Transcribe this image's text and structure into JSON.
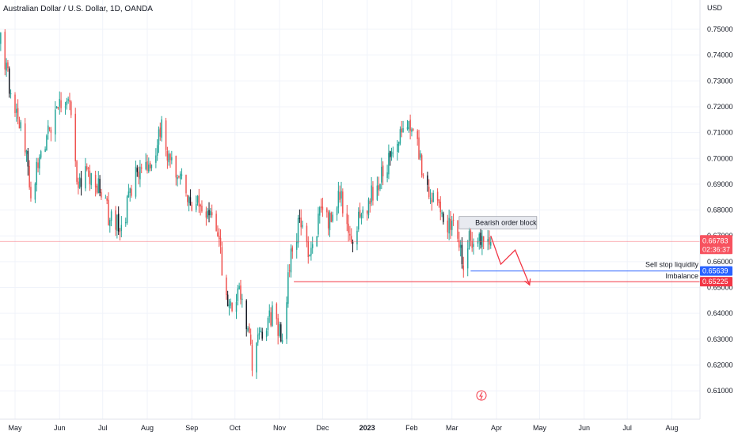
{
  "title": "Australian Dollar / U.S. Dollar, 1D, OANDA",
  "currency": "USD",
  "colors": {
    "up": "#26a69a",
    "down": "#ef5350",
    "candle_dark": "#131722",
    "price_line": "#f7525f",
    "liquidity_line": "#2962ff",
    "imbalance_line": "#f23645",
    "arrow": "#f23645",
    "zone_fill": "#e0e3eb",
    "zone_border": "#9598a1",
    "grid": "#f0f3fa"
  },
  "chart_data": {
    "type": "candlestick",
    "y_ticks": [
      "0.75000",
      "0.74000",
      "0.73000",
      "0.72000",
      "0.71000",
      "0.70000",
      "0.69000",
      "0.68000",
      "0.67000",
      "0.66000",
      "0.65000",
      "0.64000",
      "0.63000",
      "0.62000",
      "0.61000"
    ],
    "ylim": [
      0.6055,
      0.7595
    ],
    "x_ticks": [
      {
        "label": "May",
        "date": "2022-05-01",
        "bold": false
      },
      {
        "label": "Jun",
        "date": "2022-06-01",
        "bold": false
      },
      {
        "label": "Jul",
        "date": "2022-07-01",
        "bold": false
      },
      {
        "label": "Aug",
        "date": "2022-08-01",
        "bold": false
      },
      {
        "label": "Sep",
        "date": "2022-09-01",
        "bold": false
      },
      {
        "label": "Oct",
        "date": "2022-10-01",
        "bold": false
      },
      {
        "label": "Nov",
        "date": "2022-11-01",
        "bold": false
      },
      {
        "label": "Dec",
        "date": "2022-12-01",
        "bold": false
      },
      {
        "label": "2023",
        "date": "2023-01-01",
        "bold": true
      },
      {
        "label": "Feb",
        "date": "2023-02-01",
        "bold": false
      },
      {
        "label": "Mar",
        "date": "2023-03-01",
        "bold": false
      },
      {
        "label": "Apr",
        "date": "2023-04-01",
        "bold": false
      },
      {
        "label": "May",
        "date": "2023-05-01",
        "bold": false
      },
      {
        "label": "Jun",
        "date": "2023-06-01",
        "bold": false
      },
      {
        "label": "Jul",
        "date": "2023-07-01",
        "bold": false
      },
      {
        "label": "Aug",
        "date": "2023-08-01",
        "bold": false
      }
    ],
    "closes": [
      {
        "date": "2022-04-21",
        "close": 0.745
      },
      {
        "date": "2022-04-28",
        "close": 0.725
      },
      {
        "date": "2022-05-06",
        "close": 0.712
      },
      {
        "date": "2022-05-12",
        "close": 0.688
      },
      {
        "date": "2022-05-19",
        "close": 0.703
      },
      {
        "date": "2022-05-26",
        "close": 0.711
      },
      {
        "date": "2022-06-03",
        "close": 0.723
      },
      {
        "date": "2022-06-08",
        "close": 0.719
      },
      {
        "date": "2022-06-14",
        "close": 0.688
      },
      {
        "date": "2022-06-20",
        "close": 0.695
      },
      {
        "date": "2022-06-27",
        "close": 0.69
      },
      {
        "date": "2022-07-05",
        "close": 0.678
      },
      {
        "date": "2022-07-14",
        "close": 0.672
      },
      {
        "date": "2022-07-22",
        "close": 0.692
      },
      {
        "date": "2022-08-02",
        "close": 0.696
      },
      {
        "date": "2022-08-11",
        "close": 0.712
      },
      {
        "date": "2022-08-17",
        "close": 0.699
      },
      {
        "date": "2022-08-25",
        "close": 0.692
      },
      {
        "date": "2022-09-02",
        "close": 0.682
      },
      {
        "date": "2022-09-13",
        "close": 0.681
      },
      {
        "date": "2022-09-19",
        "close": 0.67
      },
      {
        "date": "2022-09-27",
        "close": 0.64
      },
      {
        "date": "2022-10-04",
        "close": 0.65
      },
      {
        "date": "2022-10-13",
        "close": 0.622
      },
      {
        "date": "2022-10-21",
        "close": 0.635
      },
      {
        "date": "2022-10-27",
        "close": 0.64
      },
      {
        "date": "2022-11-03",
        "close": 0.63
      },
      {
        "date": "2022-11-10",
        "close": 0.668
      },
      {
        "date": "2022-11-16",
        "close": 0.675
      },
      {
        "date": "2022-11-21",
        "close": 0.662
      },
      {
        "date": "2022-11-30",
        "close": 0.679
      },
      {
        "date": "2022-12-08",
        "close": 0.675
      },
      {
        "date": "2022-12-13",
        "close": 0.687
      },
      {
        "date": "2022-12-21",
        "close": 0.67
      },
      {
        "date": "2022-12-30",
        "close": 0.68
      },
      {
        "date": "2023-01-12",
        "close": 0.695
      },
      {
        "date": "2023-01-24",
        "close": 0.708
      },
      {
        "date": "2023-02-02",
        "close": 0.713
      },
      {
        "date": "2023-02-09",
        "close": 0.692
      },
      {
        "date": "2023-02-16",
        "close": 0.686
      },
      {
        "date": "2023-02-24",
        "close": 0.675
      },
      {
        "date": "2023-03-03",
        "close": 0.675
      },
      {
        "date": "2023-03-09",
        "close": 0.66
      },
      {
        "date": "2023-03-13",
        "close": 0.668
      },
      {
        "date": "2023-03-20",
        "close": 0.67
      },
      {
        "date": "2023-03-24",
        "close": 0.665
      },
      {
        "date": "2023-03-28",
        "close": 0.6678
      }
    ],
    "current_price": {
      "value": 0.66783,
      "label": "0.66783",
      "countdown": "02:36:37"
    },
    "bearish_order_block": {
      "label": "Bearish order block",
      "start": "2023-03-06",
      "end": "2023-04-29",
      "top": 0.6775,
      "bottom": 0.6727
    },
    "sell_stop_liquidity": {
      "label": "Sell stop liquidity",
      "value": 0.65639,
      "value_label": "0.65639",
      "start": "2023-03-14"
    },
    "imbalance": {
      "label": "Imbalance",
      "value": 0.65225,
      "value_label": "0.65225",
      "start": "2022-11-11"
    },
    "projected_path": [
      {
        "date": "2023-03-28",
        "price": 0.67
      },
      {
        "date": "2023-04-04",
        "price": 0.659
      },
      {
        "date": "2023-04-14",
        "price": 0.6645
      },
      {
        "date": "2023-04-24",
        "price": 0.651
      }
    ]
  }
}
